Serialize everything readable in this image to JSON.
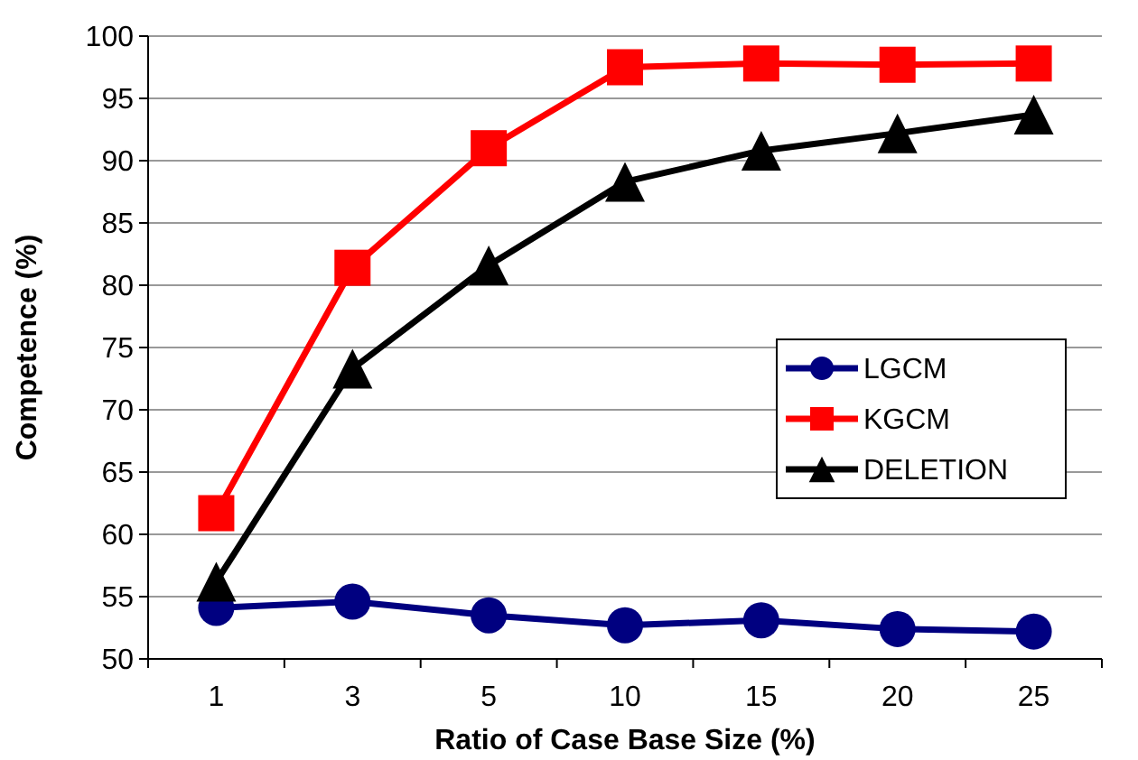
{
  "chart_data": {
    "type": "line",
    "xlabel": "Ratio of Case Base Size (%)",
    "ylabel": "Competence (%)",
    "categories": [
      "1",
      "3",
      "5",
      "10",
      "15",
      "20",
      "25"
    ],
    "series": [
      {
        "name": "LGCM",
        "color": "#000080",
        "marker": "circle",
        "values": [
          54.1,
          54.6,
          53.5,
          52.7,
          53.1,
          52.4,
          52.2
        ]
      },
      {
        "name": "KGCM",
        "color": "#ff0000",
        "marker": "square",
        "values": [
          61.7,
          81.4,
          91.0,
          97.5,
          97.8,
          97.7,
          97.8
        ]
      },
      {
        "name": "DELETION",
        "color": "#000000",
        "marker": "triangle",
        "values": [
          56.2,
          73.3,
          81.6,
          88.3,
          90.8,
          92.2,
          93.7
        ]
      }
    ],
    "ylim": [
      50,
      100
    ],
    "yticks": [
      50,
      55,
      60,
      65,
      70,
      75,
      80,
      85,
      90,
      95,
      100
    ],
    "grid": "y",
    "legend": "right"
  }
}
